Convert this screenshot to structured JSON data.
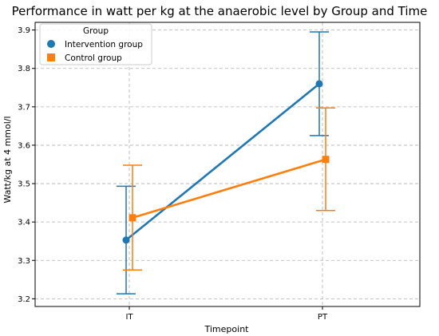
{
  "chart_data": {
    "type": "line",
    "title": "Performance in watt per kg at the anaerobic level by Group and Time",
    "xlabel": "Timepoint",
    "ylabel": "Watt/kg at 4 mmol/l",
    "categories": [
      "IT",
      "PT"
    ],
    "ylim": [
      3.18,
      3.92
    ],
    "yticks": [
      "3.2",
      "3.3",
      "3.4",
      "3.5",
      "3.6",
      "3.7",
      "3.8",
      "3.9"
    ],
    "grid": true,
    "legend": {
      "title": "Group",
      "position": "top-left"
    },
    "series": [
      {
        "name": "Intervention group",
        "color": "#1f77b4",
        "marker": "circle",
        "values": [
          3.353,
          3.76
        ],
        "error_low": [
          3.213,
          3.625
        ],
        "error_high": [
          3.493,
          3.895
        ]
      },
      {
        "name": "Control group",
        "color": "#ff7f0e",
        "marker": "square",
        "values": [
          3.411,
          3.563
        ],
        "error_low": [
          3.275,
          3.43
        ],
        "error_high": [
          3.548,
          3.697
        ]
      }
    ]
  }
}
